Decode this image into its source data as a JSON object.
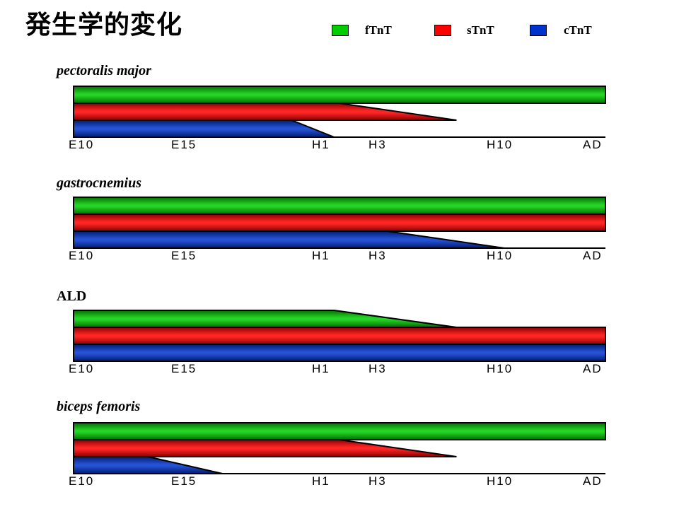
{
  "title": "発生学的変化",
  "colors": {
    "fTnT": "#00cc00",
    "sTnT": "#ff0000",
    "cTnT": "#0033cc"
  },
  "legend": [
    {
      "key": "fTnT",
      "label": "fTnT"
    },
    {
      "key": "sTnT",
      "label": "sTnT"
    },
    {
      "key": "cTnT",
      "label": "cTnT"
    }
  ],
  "stages": [
    "E10",
    "E15",
    "H1",
    "H3",
    "H10",
    "AD"
  ],
  "panels": [
    {
      "label": "pectoralis major",
      "italic": true,
      "bars": [
        {
          "key": "fTnT",
          "full_until": 1.0,
          "taper_end": 1.0
        },
        {
          "key": "sTnT",
          "full_until": 0.5,
          "taper_end": 0.72
        },
        {
          "key": "cTnT",
          "full_until": 0.41,
          "taper_end": 0.49
        }
      ]
    },
    {
      "label": "gastrocnemius",
      "italic": true,
      "bars": [
        {
          "key": "fTnT",
          "full_until": 1.0,
          "taper_end": 1.0
        },
        {
          "key": "sTnT",
          "full_until": 1.0,
          "taper_end": 1.0
        },
        {
          "key": "cTnT",
          "full_until": 0.59,
          "taper_end": 0.81
        }
      ]
    },
    {
      "label": "ALD",
      "italic": false,
      "bars": [
        {
          "key": "fTnT",
          "full_until": 0.49,
          "taper_end": 0.72
        },
        {
          "key": "sTnT",
          "full_until": 1.0,
          "taper_end": 1.0
        },
        {
          "key": "cTnT",
          "full_until": 1.0,
          "taper_end": 1.0
        }
      ]
    },
    {
      "label": "biceps femoris",
      "italic": true,
      "bars": [
        {
          "key": "fTnT",
          "full_until": 1.0,
          "taper_end": 1.0
        },
        {
          "key": "sTnT",
          "full_until": 0.5,
          "taper_end": 0.72
        },
        {
          "key": "cTnT",
          "full_until": 0.14,
          "taper_end": 0.28
        }
      ]
    }
  ]
}
